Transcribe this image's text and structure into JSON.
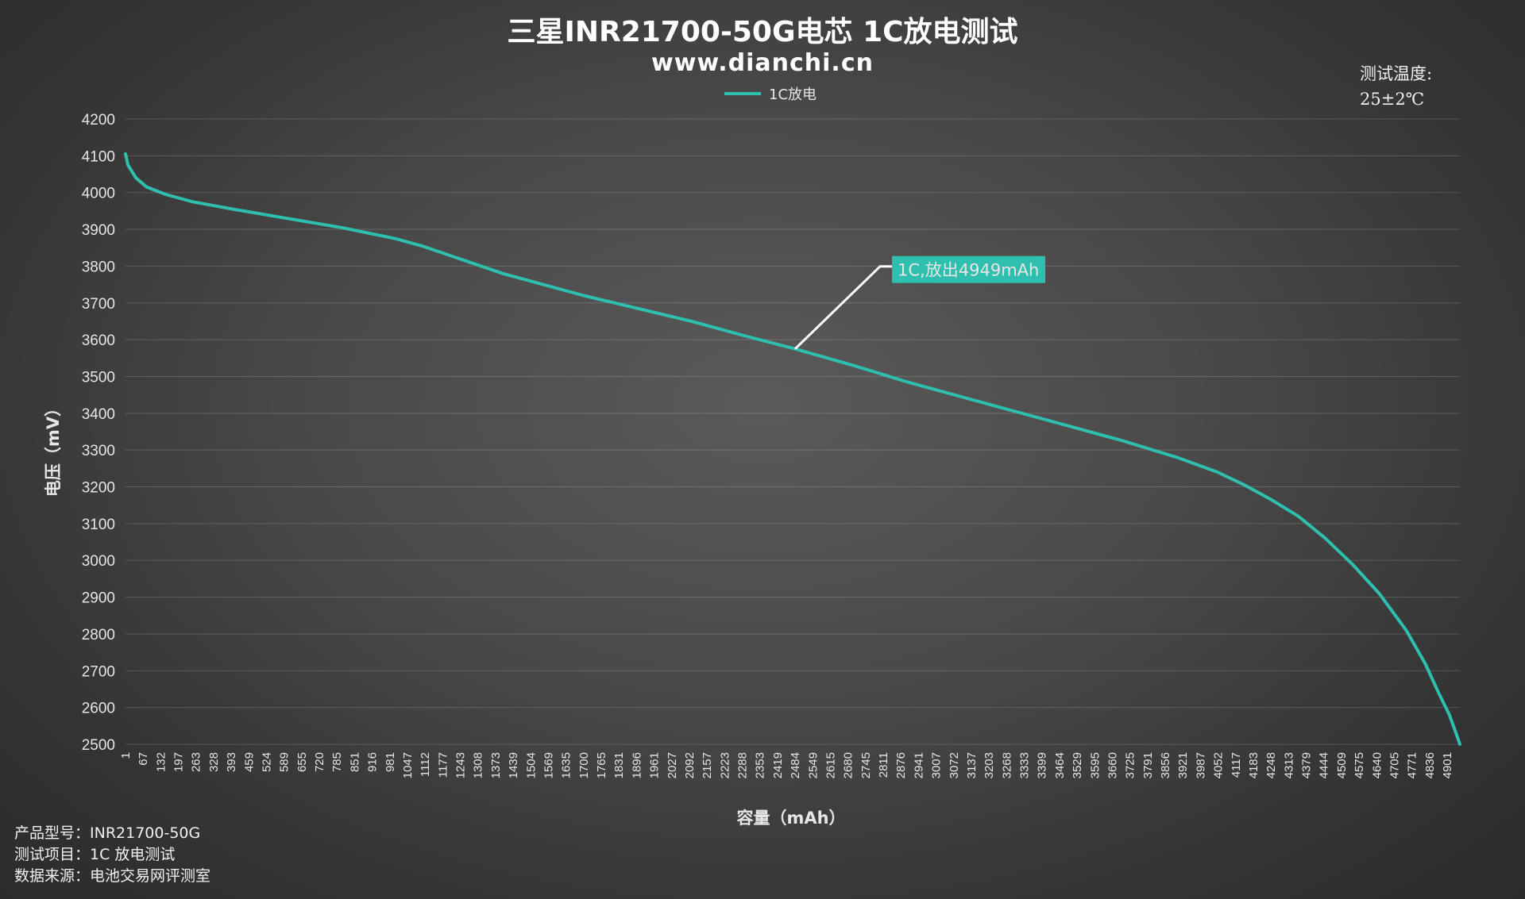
{
  "header": {
    "title": "三星INR21700-50G电芯 1C放电测试",
    "subtitle": "www.dianchi.cn"
  },
  "temperature": {
    "label": "测试温度:",
    "value": "25±2℃"
  },
  "info": {
    "product_model": "产品型号：INR21700-50G",
    "test_item": "测试项目：1C 放电测试",
    "data_source": "数据来源：电池交易网评测室"
  },
  "colors": {
    "series": "#2ebfae",
    "callout_bg": "#2ebfae",
    "callout_line": "#ffffff"
  },
  "chart_data": {
    "type": "line",
    "title": "三星INR21700-50G电芯 1C放电测试",
    "subtitle": "www.dianchi.cn",
    "xlabel": "容量（mAh）",
    "ylabel": "电压（mV）",
    "ylim": [
      2500,
      4200
    ],
    "yticks": [
      2500,
      2600,
      2700,
      2800,
      2900,
      3000,
      3100,
      3200,
      3300,
      3400,
      3500,
      3600,
      3700,
      3800,
      3900,
      4000,
      4100,
      4200
    ],
    "xticks": [
      "1",
      "67",
      "132",
      "197",
      "263",
      "328",
      "393",
      "459",
      "524",
      "589",
      "655",
      "720",
      "785",
      "851",
      "916",
      "981",
      "1047",
      "1112",
      "1177",
      "1243",
      "1308",
      "1373",
      "1439",
      "1504",
      "1569",
      "1635",
      "1700",
      "1765",
      "1831",
      "1896",
      "1961",
      "2027",
      "2092",
      "2157",
      "2223",
      "2288",
      "2353",
      "2419",
      "2484",
      "2549",
      "2615",
      "2680",
      "2745",
      "2811",
      "2876",
      "2941",
      "3007",
      "3072",
      "3137",
      "3203",
      "3268",
      "3333",
      "3399",
      "3464",
      "3529",
      "3595",
      "3660",
      "3725",
      "3791",
      "3856",
      "3921",
      "3987",
      "4052",
      "4117",
      "4183",
      "4248",
      "4313",
      "4379",
      "4444",
      "4509",
      "4575",
      "4640",
      "4705",
      "4771",
      "4836",
      "4901"
    ],
    "xlim": [
      1,
      4949
    ],
    "grid": true,
    "legend": "top-center",
    "series": [
      {
        "name": "1C放电",
        "x": [
          1,
          10,
          40,
          80,
          150,
          250,
          400,
          600,
          800,
          1000,
          1100,
          1200,
          1300,
          1400,
          1500,
          1700,
          1900,
          2100,
          2300,
          2484,
          2700,
          2900,
          3100,
          3300,
          3500,
          3700,
          3900,
          4050,
          4150,
          4250,
          4350,
          4450,
          4550,
          4650,
          4750,
          4820,
          4870,
          4910,
          4935,
          4949
        ],
        "values": [
          4105,
          4075,
          4040,
          4015,
          3995,
          3975,
          3955,
          3930,
          3905,
          3875,
          3855,
          3830,
          3805,
          3780,
          3760,
          3720,
          3685,
          3650,
          3610,
          3575,
          3530,
          3485,
          3445,
          3405,
          3365,
          3325,
          3280,
          3240,
          3205,
          3165,
          3120,
          3060,
          2990,
          2910,
          2810,
          2720,
          2640,
          2580,
          2530,
          2500
        ]
      }
    ],
    "annotations": [
      {
        "text": "1C,放出4949mAh",
        "x": 2484,
        "y": 3575
      }
    ]
  }
}
